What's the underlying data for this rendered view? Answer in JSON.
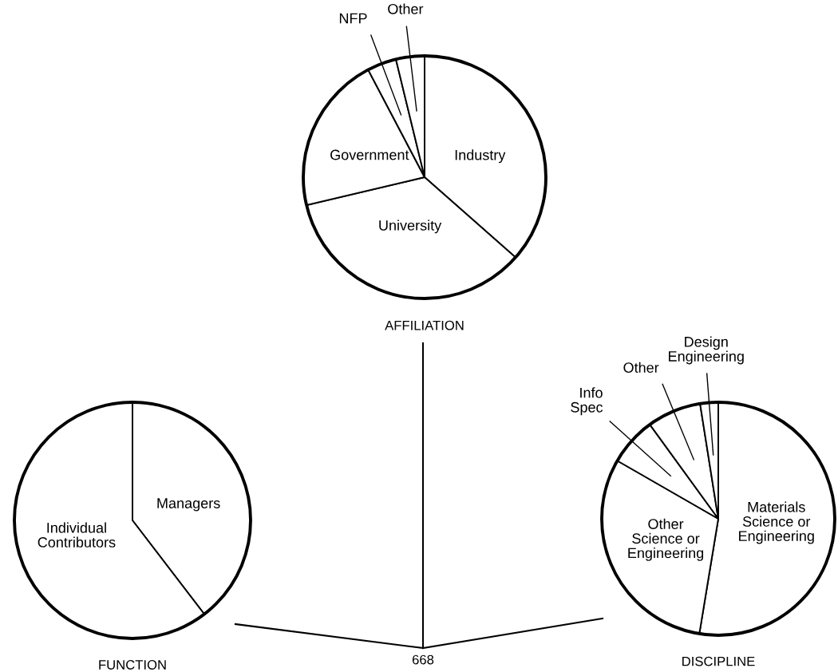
{
  "chart_data": [
    {
      "type": "pie",
      "title": "AFFILIATION",
      "categories": [
        "Industry",
        "University",
        "Government",
        "NFP",
        "Other"
      ],
      "values": [
        36.5,
        34.8,
        21,
        3.9,
        3.8
      ],
      "colors": [
        "#ffffff",
        "#ffffff",
        "#ffffff",
        "#ffffff",
        "#ffffff"
      ]
    },
    {
      "type": "pie",
      "title": "FUNCTION",
      "categories": [
        "Managers",
        "Individual\nContributors"
      ],
      "values": [
        39.6,
        60.4
      ],
      "colors": [
        "#ffffff",
        "#ffffff"
      ]
    },
    {
      "type": "pie",
      "title": "DISCIPLINE",
      "categories": [
        "Materials\nScience or\nEngineering",
        "Other\nScience or\nEngineering",
        "Info\nSpec",
        "Other",
        "Design\nEngineering"
      ],
      "values": [
        52.6,
        30.7,
        6.7,
        7.5,
        2.5
      ],
      "colors": [
        "#ffffff",
        "#ffffff",
        "#ffffff",
        "#ffffff",
        "#ffffff"
      ]
    },
    {
      "type": "other",
      "annotations": [
        "668"
      ]
    }
  ]
}
